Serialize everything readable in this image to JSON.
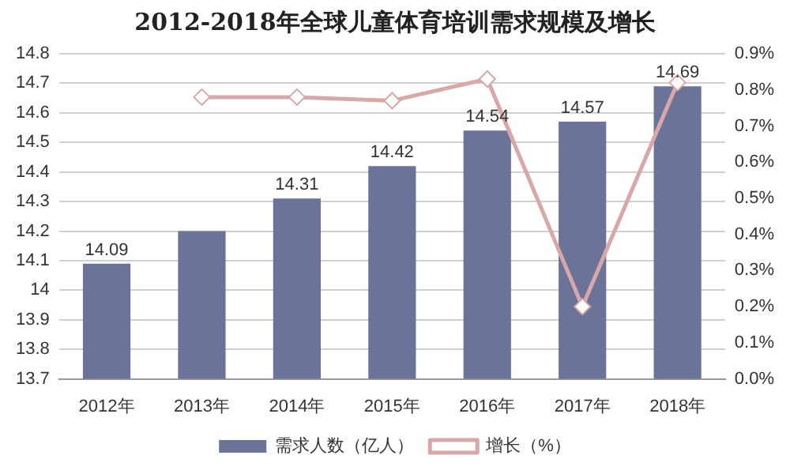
{
  "chart_data": {
    "type": "bar",
    "title": "2012-2018年全球儿童体育培训需求规模及增长",
    "categories": [
      "2012年",
      "2013年",
      "2014年",
      "2015年",
      "2016年",
      "2017年",
      "2018年"
    ],
    "series": [
      {
        "name": "需求人数（亿人）",
        "color": "#6b7399",
        "values": [
          14.09,
          14.2,
          14.31,
          14.42,
          14.54,
          14.57,
          14.69
        ],
        "value_labels": [
          "14.09",
          null,
          "14.31",
          "14.42",
          "14.54",
          "14.57",
          "14.69"
        ]
      },
      {
        "name": "增长（%）",
        "type": "line",
        "axis": "y2",
        "color": "#d8a8a8",
        "marker": "diamond",
        "values": [
          null,
          0.78,
          0.78,
          0.77,
          0.83,
          0.2,
          0.82
        ]
      }
    ],
    "ylim": [
      13.7,
      14.8
    ],
    "yticks": [
      13.7,
      13.8,
      13.9,
      14,
      14.1,
      14.2,
      14.3,
      14.4,
      14.5,
      14.6,
      14.7,
      14.8
    ],
    "y2lim": [
      0,
      0.9
    ],
    "y2ticks": [
      {
        "value": 0,
        "label": "0.0%"
      },
      {
        "value": 0.1,
        "label": "0.1%"
      },
      {
        "value": 0.2,
        "label": "0.2%"
      },
      {
        "value": 0.3,
        "label": "0.3%"
      },
      {
        "value": 0.4,
        "label": "0.4%"
      },
      {
        "value": 0.5,
        "label": "0.5%"
      },
      {
        "value": 0.6,
        "label": "0.6%"
      },
      {
        "value": 0.7,
        "label": "0.7%"
      },
      {
        "value": 0.8,
        "label": "0.8%"
      },
      {
        "value": 0.9,
        "label": "0.9%"
      }
    ],
    "grid": "y",
    "legend": "bottom"
  }
}
